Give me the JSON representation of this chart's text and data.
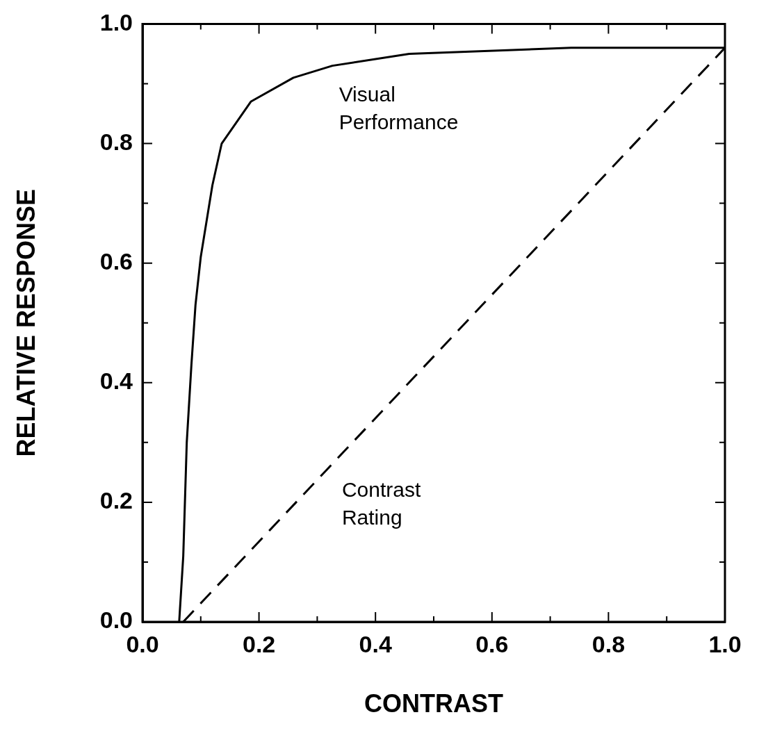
{
  "chart_data": {
    "type": "line",
    "xlabel": "CONTRAST",
    "ylabel": "RELATIVE RESPONSE",
    "xlim": [
      0,
      1
    ],
    "ylim": [
      0,
      1
    ],
    "xticks": [
      {
        "value": 0,
        "label": "0.0"
      },
      {
        "value": 0.1,
        "label": null
      },
      {
        "value": 0.2,
        "label": "0.2"
      },
      {
        "value": 0.3,
        "label": null
      },
      {
        "value": 0.4,
        "label": "0.4"
      },
      {
        "value": 0.5,
        "label": null
      },
      {
        "value": 0.6,
        "label": "0.6"
      },
      {
        "value": 0.7,
        "label": null
      },
      {
        "value": 0.8,
        "label": "0.8"
      },
      {
        "value": 0.9,
        "label": null
      },
      {
        "value": 1,
        "label": "1.0"
      }
    ],
    "yticks": [
      {
        "value": 0,
        "label": "0.0"
      },
      {
        "value": 0.1,
        "label": null
      },
      {
        "value": 0.2,
        "label": "0.2"
      },
      {
        "value": 0.3,
        "label": null
      },
      {
        "value": 0.4,
        "label": "0.4"
      },
      {
        "value": 0.5,
        "label": null
      },
      {
        "value": 0.6,
        "label": "0.6"
      },
      {
        "value": 0.7,
        "label": null
      },
      {
        "value": 0.8,
        "label": "0.8"
      },
      {
        "value": 0.9,
        "label": null
      },
      {
        "value": 1,
        "label": "1.0"
      }
    ],
    "grid": false,
    "legend": false,
    "marker": "none",
    "series": [
      {
        "name": "Visual Performance",
        "color": "#000000",
        "line_style": "solid",
        "x": [
          0.063,
          0.07,
          0.076,
          0.084,
          0.091,
          0.1,
          0.12,
          0.136,
          0.186,
          0.259,
          0.326,
          0.458,
          0.736,
          1.0
        ],
        "values": [
          0,
          0.11,
          0.3,
          0.43,
          0.53,
          0.61,
          0.73,
          0.8,
          0.87,
          0.91,
          0.93,
          0.95,
          0.96,
          0.96
        ]
      },
      {
        "name": "Contrast Rating",
        "color": "#000000",
        "line_style": "dashed",
        "x": [
          0.07,
          1.0
        ],
        "values": [
          0,
          0.96
        ]
      }
    ]
  }
}
